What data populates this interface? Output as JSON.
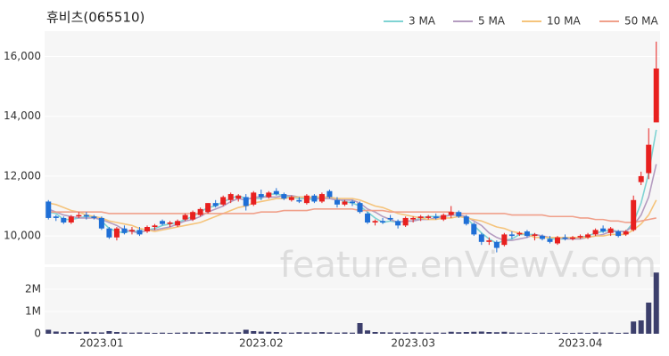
{
  "chart_data": {
    "type": "candlestick",
    "title": "휴비츠(065510)",
    "watermark": "feature.enViewV.com",
    "up_color": "#e8201f",
    "down_color": "#1f6fd6",
    "categories": [
      null,
      null,
      null,
      null,
      null,
      null,
      null,
      "2023.01",
      null,
      null,
      null,
      null,
      null,
      null,
      null,
      null,
      null,
      null,
      null,
      null,
      null,
      null,
      null,
      null,
      null,
      null,
      null,
      null,
      "2023.02",
      null,
      null,
      null,
      null,
      null,
      null,
      null,
      null,
      null,
      null,
      null,
      null,
      null,
      null,
      null,
      null,
      null,
      null,
      null,
      "2023.03",
      null,
      null,
      null,
      null,
      null,
      null,
      null,
      null,
      null,
      null,
      null,
      null,
      null,
      null,
      null,
      null,
      null,
      null,
      null,
      null,
      null,
      "2023.04",
      null,
      null,
      null,
      null,
      null,
      null,
      null,
      null,
      null,
      null
    ],
    "open": [
      11150,
      10650,
      10600,
      10450,
      10650,
      10700,
      10650,
      10600,
      10250,
      9950,
      10250,
      10150,
      10200,
      10150,
      10300,
      10500,
      10400,
      10350,
      10550,
      10550,
      10700,
      10800,
      11100,
      11050,
      11200,
      11250,
      11300,
      11050,
      11400,
      11300,
      11500,
      11400,
      11200,
      11200,
      11100,
      11350,
      11150,
      11500,
      11200,
      11050,
      11150,
      11100,
      10750,
      10450,
      10500,
      10600,
      10500,
      10350,
      10550,
      10600,
      10600,
      10650,
      10550,
      10700,
      10800,
      10650,
      10400,
      10050,
      9800,
      9800,
      9700,
      10050,
      10050,
      10150,
      10000,
      10000,
      9900,
      9750,
      9950,
      9900,
      9950,
      9950,
      10050,
      10250,
      10100,
      10150,
      10050,
      10200,
      11800,
      12100,
      13800
    ],
    "high": [
      11200,
      10700,
      10650,
      10700,
      10800,
      10800,
      10700,
      10650,
      10300,
      10300,
      10350,
      10300,
      10300,
      10350,
      10400,
      10550,
      10500,
      10550,
      10750,
      10850,
      10950,
      11100,
      11200,
      11350,
      11450,
      11400,
      11400,
      11500,
      11550,
      11500,
      11600,
      11450,
      11350,
      11300,
      11400,
      11400,
      11450,
      11550,
      11300,
      11200,
      11200,
      11150,
      10800,
      10550,
      10600,
      10700,
      10550,
      10650,
      10650,
      10700,
      10700,
      10750,
      10750,
      11000,
      10850,
      10700,
      10450,
      10100,
      9950,
      9850,
      10100,
      10150,
      10150,
      10200,
      10100,
      10050,
      10000,
      10000,
      10050,
      10000,
      10050,
      10100,
      10250,
      10350,
      10300,
      10200,
      10200,
      11350,
      12150,
      13600,
      16500
    ],
    "low": [
      10550,
      10500,
      10400,
      10400,
      10600,
      10550,
      10550,
      10200,
      9900,
      9850,
      10050,
      10050,
      10000,
      10100,
      10200,
      10350,
      10300,
      10300,
      10500,
      10500,
      10650,
      10750,
      10950,
      11000,
      11100,
      11150,
      10850,
      11000,
      11200,
      11250,
      11350,
      11200,
      11150,
      11100,
      11050,
      11100,
      11100,
      11250,
      10950,
      11000,
      11000,
      10750,
      10400,
      10350,
      10400,
      10500,
      10250,
      10300,
      10450,
      10500,
      10550,
      10550,
      10500,
      10600,
      10600,
      10350,
      10000,
      9700,
      9700,
      9450,
      9650,
      9900,
      10000,
      9950,
      9850,
      9850,
      9750,
      9700,
      9850,
      9850,
      9900,
      9900,
      10000,
      10100,
      10000,
      9950,
      10000,
      10150,
      11700,
      11900,
      13800
    ],
    "close": [
      10600,
      10600,
      10450,
      10650,
      10700,
      10650,
      10600,
      10250,
      9950,
      10250,
      10100,
      10200,
      10050,
      10300,
      10350,
      10400,
      10450,
      10500,
      10700,
      10800,
      10900,
      11100,
      11000,
      11300,
      11400,
      11350,
      11000,
      11450,
      11300,
      11450,
      11400,
      11250,
      11300,
      11150,
      11350,
      11150,
      11400,
      11300,
      11050,
      11150,
      11100,
      10800,
      10450,
      10500,
      10450,
      10550,
      10350,
      10600,
      10600,
      10650,
      10650,
      10600,
      10700,
      10800,
      10650,
      10400,
      10050,
      9800,
      9850,
      9600,
      10050,
      10000,
      10100,
      10000,
      10050,
      9900,
      9800,
      9950,
      9900,
      9950,
      10000,
      10050,
      10200,
      10150,
      10250,
      10000,
      10150,
      11200,
      12000,
      13050,
      15600
    ],
    "series": [
      {
        "name": "3 MA",
        "color": "#7fd3d3",
        "values": [
          10800,
          10750,
          10550,
          10550,
          10600,
          10650,
          10650,
          10500,
          10250,
          10150,
          10100,
          10200,
          10100,
          10200,
          10250,
          10350,
          10400,
          10450,
          10550,
          10650,
          10800,
          10950,
          11000,
          11150,
          11250,
          11350,
          11250,
          11250,
          11250,
          11400,
          11400,
          11350,
          11300,
          11250,
          11250,
          11200,
          11300,
          11300,
          11250,
          11150,
          11100,
          11000,
          10800,
          10600,
          10450,
          10500,
          10450,
          10500,
          10500,
          10600,
          10650,
          10650,
          10650,
          10700,
          10700,
          10600,
          10350,
          10100,
          9900,
          9750,
          9850,
          9900,
          10050,
          10050,
          10050,
          10000,
          9900,
          9900,
          9900,
          9950,
          9950,
          10000,
          10100,
          10150,
          10200,
          10150,
          10150,
          10450,
          11100,
          12100,
          13550
        ]
      },
      {
        "name": "5 MA",
        "color": "#b49cc0",
        "values": [
          10900,
          10800,
          10700,
          10650,
          10600,
          10600,
          10600,
          10550,
          10450,
          10350,
          10200,
          10150,
          10100,
          10200,
          10200,
          10250,
          10300,
          10400,
          10500,
          10550,
          10650,
          10800,
          10900,
          11000,
          11150,
          11250,
          11200,
          11300,
          11300,
          11300,
          11300,
          11350,
          11350,
          11300,
          11300,
          11250,
          11250,
          11250,
          11200,
          11200,
          11200,
          11100,
          10900,
          10800,
          10650,
          10550,
          10450,
          10500,
          10500,
          10550,
          10550,
          10600,
          10650,
          10700,
          10700,
          10650,
          10500,
          10350,
          10100,
          9950,
          9850,
          9850,
          9900,
          9950,
          10050,
          10000,
          9950,
          9950,
          9900,
          9900,
          9900,
          9950,
          10000,
          10050,
          10150,
          10150,
          10150,
          10350,
          10700,
          11300,
          12400
        ]
      },
      {
        "name": "10 MA",
        "color": "#f5c47c",
        "values": [
          11100,
          11050,
          10950,
          10850,
          10800,
          10700,
          10650,
          10600,
          10500,
          10450,
          10400,
          10350,
          10250,
          10200,
          10150,
          10200,
          10250,
          10300,
          10350,
          10400,
          10450,
          10550,
          10650,
          10750,
          10850,
          10950,
          11000,
          11100,
          11150,
          11200,
          11250,
          11250,
          11300,
          11300,
          11300,
          11300,
          11300,
          11300,
          11250,
          11250,
          11250,
          11200,
          11100,
          11000,
          10950,
          10850,
          10750,
          10700,
          10650,
          10600,
          10550,
          10550,
          10600,
          10600,
          10650,
          10600,
          10550,
          10500,
          10400,
          10300,
          10250,
          10150,
          10100,
          10050,
          9950,
          9950,
          9950,
          9950,
          9950,
          9950,
          9950,
          9950,
          10000,
          10000,
          10050,
          10050,
          10050,
          10200,
          10400,
          10700,
          11200
        ]
      },
      {
        "name": "50 MA",
        "color": "#f0a08a",
        "values": [
          10800,
          10800,
          10800,
          10800,
          10800,
          10800,
          10800,
          10800,
          10750,
          10750,
          10750,
          10750,
          10750,
          10750,
          10750,
          10750,
          10750,
          10750,
          10750,
          10750,
          10750,
          10750,
          10750,
          10750,
          10750,
          10750,
          10750,
          10750,
          10800,
          10800,
          10800,
          10850,
          10850,
          10850,
          10850,
          10900,
          10900,
          10900,
          10900,
          10900,
          10900,
          10850,
          10850,
          10850,
          10850,
          10800,
          10800,
          10800,
          10800,
          10800,
          10800,
          10800,
          10800,
          10800,
          10750,
          10750,
          10750,
          10750,
          10750,
          10750,
          10750,
          10700,
          10700,
          10700,
          10700,
          10700,
          10650,
          10650,
          10650,
          10650,
          10600,
          10600,
          10550,
          10550,
          10500,
          10500,
          10450,
          10450,
          10500,
          10550,
          10600
        ]
      }
    ],
    "ylim": [
      9050,
      16850
    ],
    "yticks": [
      {
        "value": 10000,
        "label": "10,000"
      },
      {
        "value": 12000,
        "label": "12,000"
      },
      {
        "value": 14000,
        "label": "14,000"
      },
      {
        "value": 16000,
        "label": "16,000"
      }
    ],
    "volume": {
      "color": "#3c3f6c",
      "ylim": [
        0,
        3000000
      ],
      "yticks": [
        0,
        {
          "value": 1000000,
          "label": "1M"
        },
        {
          "value": 2000000,
          "label": "2M"
        }
      ],
      "values": [
        180000,
        100000,
        70000,
        80000,
        60000,
        90000,
        70000,
        60000,
        120000,
        80000,
        60000,
        50000,
        60000,
        50000,
        40000,
        50000,
        40000,
        50000,
        60000,
        70000,
        60000,
        80000,
        60000,
        70000,
        60000,
        70000,
        180000,
        120000,
        100000,
        90000,
        80000,
        60000,
        50000,
        70000,
        60000,
        60000,
        80000,
        60000,
        50000,
        60000,
        50000,
        480000,
        150000,
        80000,
        70000,
        60000,
        60000,
        50000,
        70000,
        60000,
        50000,
        60000,
        50000,
        90000,
        70000,
        80000,
        90000,
        100000,
        80000,
        70000,
        90000,
        60000,
        50000,
        50000,
        40000,
        50000,
        40000,
        50000,
        40000,
        40000,
        50000,
        40000,
        60000,
        50000,
        60000,
        40000,
        50000,
        550000,
        600000,
        1400000,
        2750000
      ]
    }
  }
}
